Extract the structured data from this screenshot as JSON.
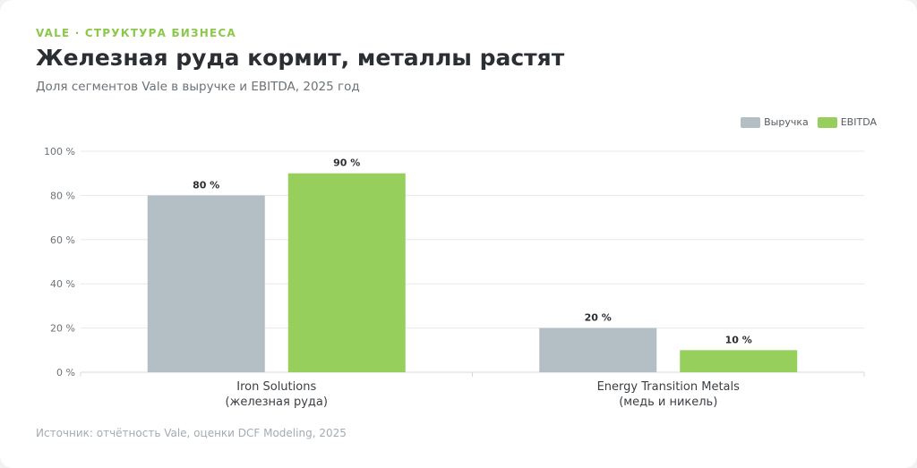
{
  "header": {
    "kicker": "VALE · СТРУКТУРА БИЗНЕСА",
    "title": "Железная руда кормит, металлы растят",
    "subtitle": "Доля сегментов Vale в выручке и EBITDA, 2025 год"
  },
  "footer": {
    "source": "Источник: отчётность Vale, оценки DCF Modeling, 2025"
  },
  "chart_data": {
    "type": "bar",
    "categories": [
      [
        "Iron Solutions",
        "(железная руда)"
      ],
      [
        "Energy Transition Metals",
        "(медь и никель)"
      ]
    ],
    "series": [
      {
        "name": "Выручка",
        "values": [
          80,
          20
        ],
        "color": "#b3bec5"
      },
      {
        "name": "EBITDA",
        "values": [
          90,
          10
        ],
        "color": "#96cf5c"
      }
    ],
    "value_suffix": " %",
    "ylim": [
      0,
      100
    ],
    "yticks": [
      0,
      20,
      40,
      60,
      80,
      100
    ],
    "grid": true,
    "legend_position": "top-right"
  }
}
